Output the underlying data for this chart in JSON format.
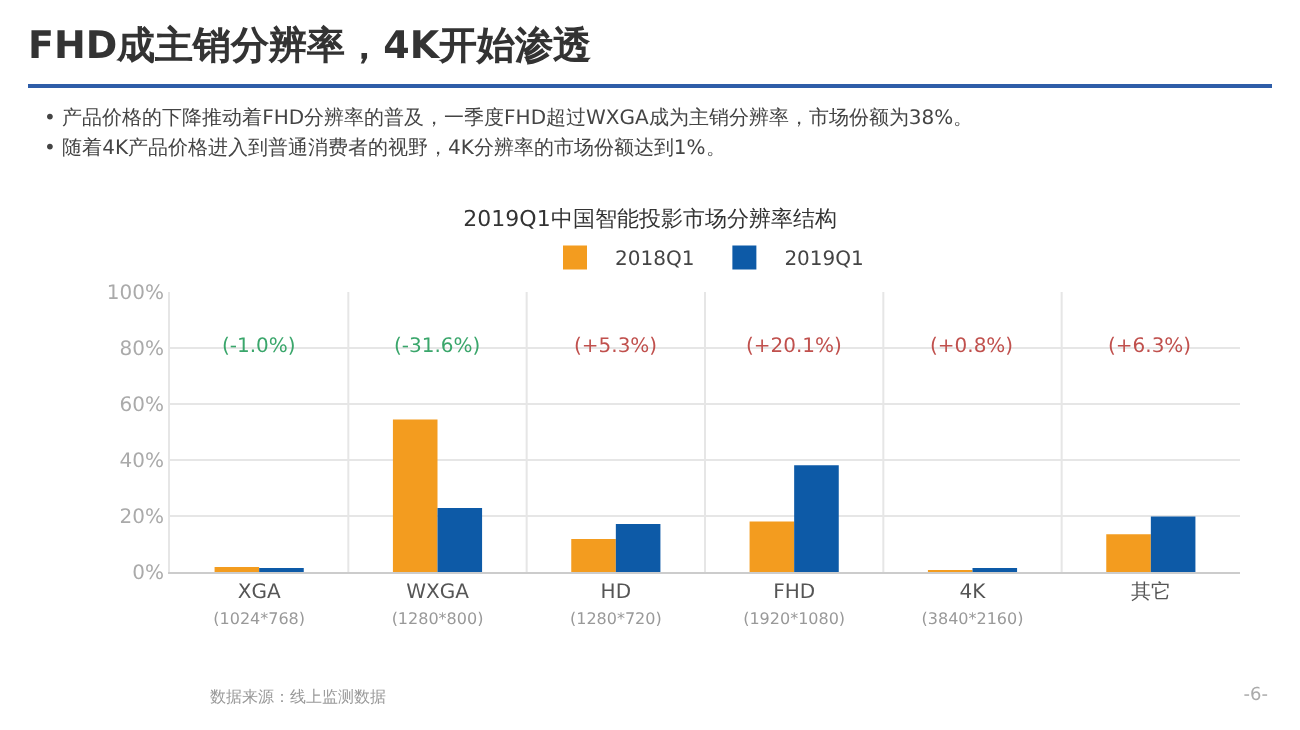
{
  "chart_data": {
    "type": "bar",
    "title": "FHD成主销分辨率，4K开始渗透",
    "subtitle": "2019Q1中国智能投影市场分辨率结构",
    "categories": [
      "XGA\n(1024*768)",
      "WXGA\n(1280*800)",
      "HD\n(1280*720)",
      "FHD\n(1920*1080)",
      "4K\n(3840*2160)",
      "其它"
    ],
    "series": [
      {
        "name": "2018Q1",
        "color": "#f39c1f",
        "values": [
          1.8,
          54.5,
          11.8,
          18.0,
          0.2,
          13.5
        ]
      },
      {
        "name": "2019Q1",
        "color": "#0d5aa7",
        "values": [
          0.8,
          22.9,
          17.1,
          38.1,
          1.0,
          19.8
        ]
      }
    ],
    "ylim": [
      0,
      100
    ],
    "yticks": [
      {
        "value": 0,
        "label": "0%"
      },
      {
        "value": 20,
        "label": "20%"
      },
      {
        "value": 40,
        "label": "40%"
      },
      {
        "value": 60,
        "label": "60%"
      },
      {
        "value": 80,
        "label": "80%"
      },
      {
        "value": 100,
        "label": "100%"
      }
    ],
    "grid": true,
    "legend": "top",
    "annotations": [
      "(-1.0%)",
      "(-31.6%)",
      "(+5.3%)",
      "(+20.1%)",
      "(+0.8%)",
      "(+6.3%)",
      "•  产品价格的下降推动着FHD分辨率的普及，一季度FHD超过WXGA成为主销分辨率，市场份额为38%。",
      "•  随着4K产品价格进入到普通消费者的视野，4K分辨率的市场份额达到1%。",
      "数据来源：线上监测数据",
      "-6-"
    ]
  }
}
